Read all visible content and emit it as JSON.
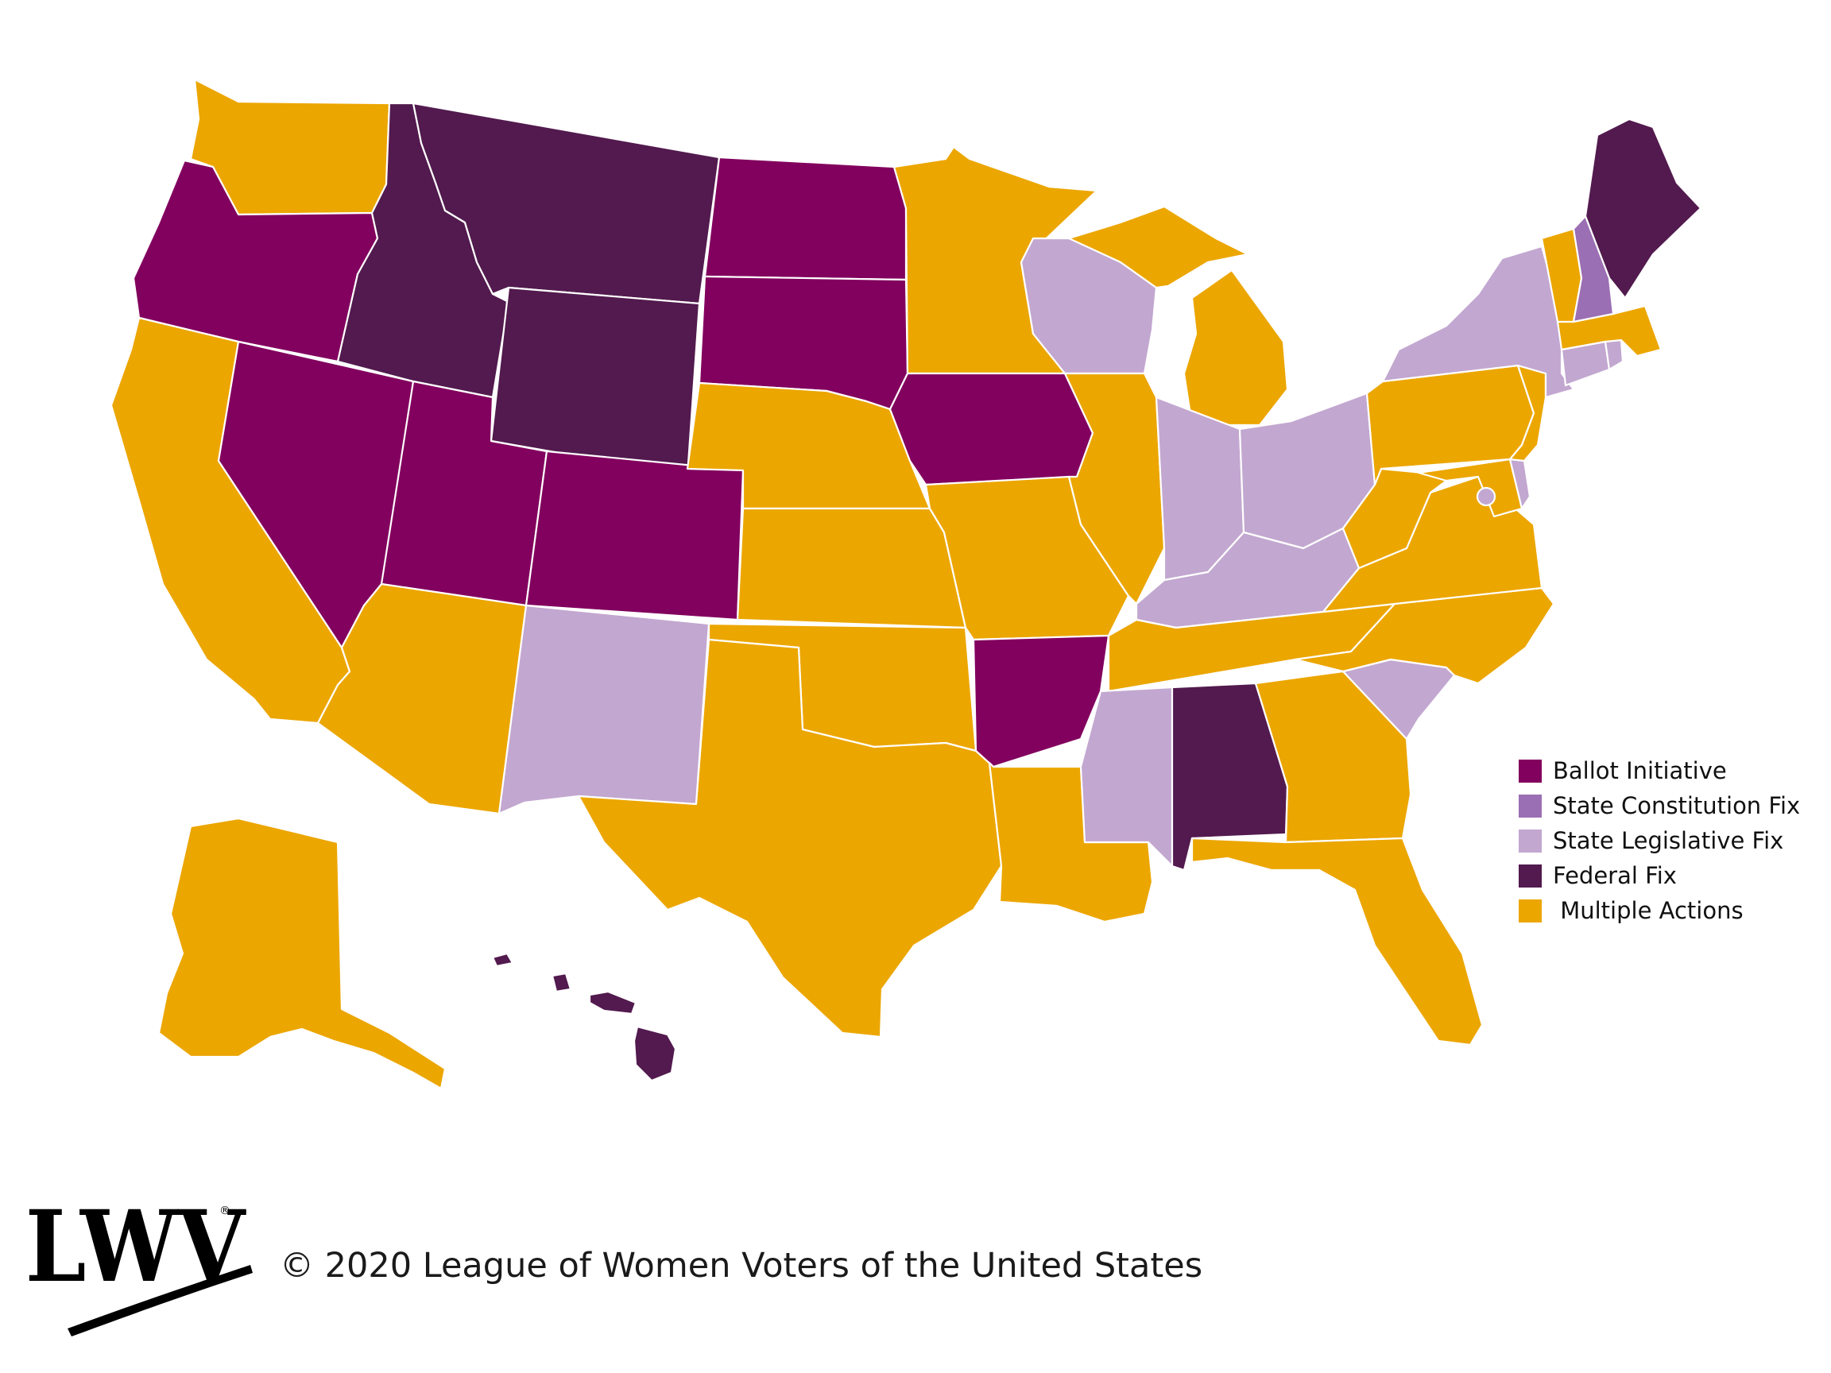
{
  "colors": {
    "ballot_initiative": "#82005e",
    "state_constitution_fix": "#9b6fb3",
    "state_legislative_fix": "#c2a7d0",
    "federal_fix": "#521a4e",
    "multiple_actions": "#eca600"
  },
  "legend": [
    {
      "key": "ballot_initiative",
      "label": "Ballot Initiative"
    },
    {
      "key": "state_constitution_fix",
      "label": "State Constitution Fix"
    },
    {
      "key": "state_legislative_fix",
      "label": "State Legislative Fix"
    },
    {
      "key": "federal_fix",
      "label": "Federal Fix"
    },
    {
      "key": "multiple_actions",
      "label": " Multiple Actions"
    }
  ],
  "states": {
    "WA": "multiple_actions",
    "OR": "ballot_initiative",
    "CA": "multiple_actions",
    "NV": "ballot_initiative",
    "ID": "federal_fix",
    "MT": "federal_fix",
    "WY": "federal_fix",
    "UT": "ballot_initiative",
    "AZ": "multiple_actions",
    "CO": "ballot_initiative",
    "NM": "state_legislative_fix",
    "ND": "ballot_initiative",
    "SD": "ballot_initiative",
    "NE": "multiple_actions",
    "KS": "multiple_actions",
    "OK": "multiple_actions",
    "TX": "multiple_actions",
    "MN": "multiple_actions",
    "IA": "ballot_initiative",
    "MO": "multiple_actions",
    "AR": "ballot_initiative",
    "LA": "multiple_actions",
    "WI": "state_legislative_fix",
    "IL": "multiple_actions",
    "MI": "multiple_actions",
    "IN": "state_legislative_fix",
    "OH": "state_legislative_fix",
    "KY": "state_legislative_fix",
    "TN": "multiple_actions",
    "MS": "state_legislative_fix",
    "AL": "federal_fix",
    "GA": "multiple_actions",
    "FL": "multiple_actions",
    "SC": "state_legislative_fix",
    "NC": "multiple_actions",
    "VA": "multiple_actions",
    "WV": "multiple_actions",
    "MD": "multiple_actions",
    "DC": "state_legislative_fix",
    "DE": "state_legislative_fix",
    "PA": "multiple_actions",
    "NJ": "multiple_actions",
    "NY": "state_legislative_fix",
    "CT": "state_legislative_fix",
    "RI": "state_legislative_fix",
    "MA": "multiple_actions",
    "VT": "multiple_actions",
    "NH": "state_constitution_fix",
    "ME": "federal_fix",
    "AK": "multiple_actions",
    "HI": "federal_fix"
  },
  "footer": {
    "logo_text": "LWV",
    "copyright": "© 2020 League of Women Voters of the United States"
  }
}
